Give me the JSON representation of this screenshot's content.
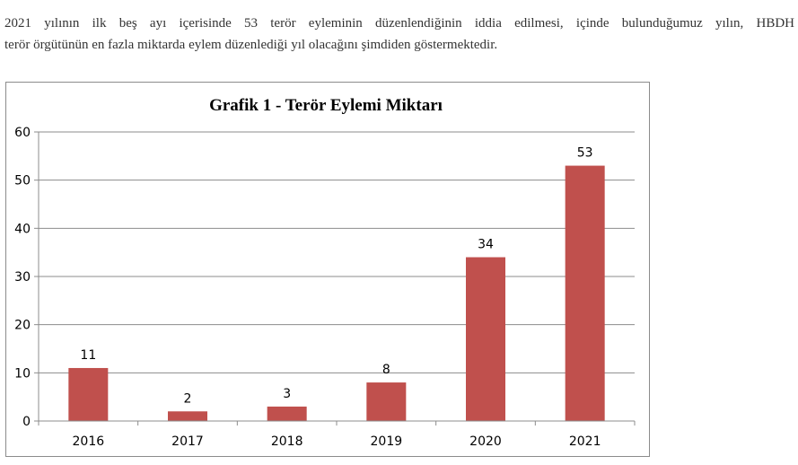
{
  "paragraph": {
    "line1": "2021 yılının ilk beş ayı içerisinde 53 terör eyleminin düzenlendiğinin iddia edilmesi, içinde bulunduğumuz yılın, HBDH",
    "line2": "terör örgütünün en fazla miktarda eylem düzenlediği yıl olacağını şimdiden göstermektedir."
  },
  "chart_data": {
    "type": "bar",
    "title": "Grafik 1 - Terör Eylemi Miktarı",
    "categories": [
      "2016",
      "2017",
      "2018",
      "2019",
      "2020",
      "2021"
    ],
    "values": [
      11,
      2,
      3,
      8,
      34,
      53
    ],
    "ylim": [
      0,
      60
    ],
    "yticks": [
      0,
      10,
      20,
      30,
      40,
      50,
      60
    ],
    "grid": true,
    "legend": "none",
    "data_labels": true,
    "bar_color": "#c0504d",
    "grid_color": "#8c8c8c"
  }
}
